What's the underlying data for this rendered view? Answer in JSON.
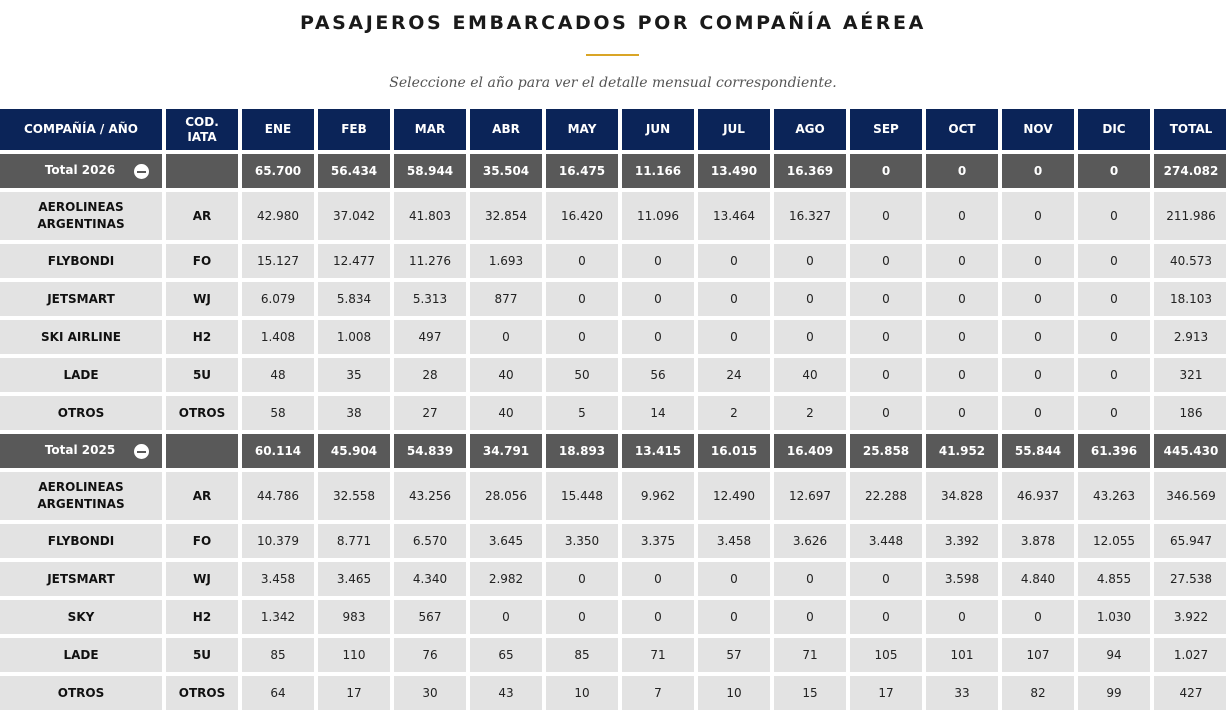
{
  "title": "PASAJEROS EMBARCADOS POR COMPAÑÍA AÉREA",
  "subtitle": "Seleccione el año para ver el detalle mensual correspondiente.",
  "headers": [
    "COMPAÑÍA / AÑO",
    "COD. IATA",
    "ENE",
    "FEB",
    "MAR",
    "ABR",
    "MAY",
    "JUN",
    "JUL",
    "AGO",
    "SEP",
    "OCT",
    "NOV",
    "DIC",
    "TOTAL"
  ],
  "groups": [
    {
      "label": "Total 2026",
      "totals": [
        "65.700",
        "56.434",
        "58.944",
        "35.504",
        "16.475",
        "11.166",
        "13.490",
        "16.369",
        "0",
        "0",
        "0",
        "0",
        "274.082"
      ],
      "rows": [
        {
          "name": "AEROLINEAS ARGENTINAS",
          "code": "AR",
          "values": [
            "42.980",
            "37.042",
            "41.803",
            "32.854",
            "16.420",
            "11.096",
            "13.464",
            "16.327",
            "0",
            "0",
            "0",
            "0",
            "211.986"
          ]
        },
        {
          "name": "FLYBONDI",
          "code": "FO",
          "values": [
            "15.127",
            "12.477",
            "11.276",
            "1.693",
            "0",
            "0",
            "0",
            "0",
            "0",
            "0",
            "0",
            "0",
            "40.573"
          ]
        },
        {
          "name": "JETSMART",
          "code": "WJ",
          "values": [
            "6.079",
            "5.834",
            "5.313",
            "877",
            "0",
            "0",
            "0",
            "0",
            "0",
            "0",
            "0",
            "0",
            "18.103"
          ]
        },
        {
          "name": "SKI AIRLINE",
          "code": "H2",
          "values": [
            "1.408",
            "1.008",
            "497",
            "0",
            "0",
            "0",
            "0",
            "0",
            "0",
            "0",
            "0",
            "0",
            "2.913"
          ]
        },
        {
          "name": "LADE",
          "code": "5U",
          "values": [
            "48",
            "35",
            "28",
            "40",
            "50",
            "56",
            "24",
            "40",
            "0",
            "0",
            "0",
            "0",
            "321"
          ]
        },
        {
          "name": "OTROS",
          "code": "OTROS",
          "values": [
            "58",
            "38",
            "27",
            "40",
            "5",
            "14",
            "2",
            "2",
            "0",
            "0",
            "0",
            "0",
            "186"
          ]
        }
      ]
    },
    {
      "label": "Total 2025",
      "totals": [
        "60.114",
        "45.904",
        "54.839",
        "34.791",
        "18.893",
        "13.415",
        "16.015",
        "16.409",
        "25.858",
        "41.952",
        "55.844",
        "61.396",
        "445.430"
      ],
      "rows": [
        {
          "name": "AEROLINEAS ARGENTINAS",
          "code": "AR",
          "values": [
            "44.786",
            "32.558",
            "43.256",
            "28.056",
            "15.448",
            "9.962",
            "12.490",
            "12.697",
            "22.288",
            "34.828",
            "46.937",
            "43.263",
            "346.569"
          ]
        },
        {
          "name": "FLYBONDI",
          "code": "FO",
          "values": [
            "10.379",
            "8.771",
            "6.570",
            "3.645",
            "3.350",
            "3.375",
            "3.458",
            "3.626",
            "3.448",
            "3.392",
            "3.878",
            "12.055",
            "65.947"
          ]
        },
        {
          "name": "JETSMART",
          "code": "WJ",
          "values": [
            "3.458",
            "3.465",
            "4.340",
            "2.982",
            "0",
            "0",
            "0",
            "0",
            "0",
            "3.598",
            "4.840",
            "4.855",
            "27.538"
          ]
        },
        {
          "name": "SKY",
          "code": "H2",
          "values": [
            "1.342",
            "983",
            "567",
            "0",
            "0",
            "0",
            "0",
            "0",
            "0",
            "0",
            "0",
            "1.030",
            "3.922"
          ]
        },
        {
          "name": "LADE",
          "code": "5U",
          "values": [
            "85",
            "110",
            "76",
            "65",
            "85",
            "71",
            "57",
            "71",
            "105",
            "101",
            "107",
            "94",
            "1.027"
          ]
        },
        {
          "name": "OTROS",
          "code": "OTROS",
          "values": [
            "64",
            "17",
            "30",
            "43",
            "10",
            "7",
            "10",
            "15",
            "17",
            "33",
            "82",
            "99",
            "427"
          ]
        }
      ]
    }
  ]
}
